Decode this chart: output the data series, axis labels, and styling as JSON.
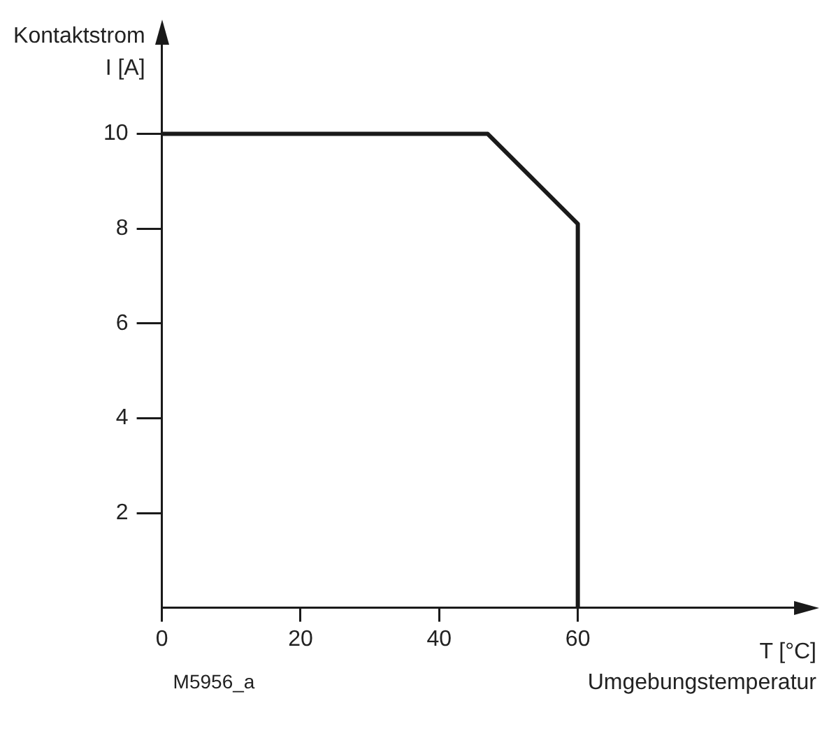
{
  "chart_data": {
    "type": "line",
    "ylabel": "Kontaktstrom\nI [A]",
    "xlabel": "T [°C]\nUmgebungstemperatur",
    "annotations": [
      "M5956_a"
    ],
    "series": [
      {
        "color": "#1a1a1a",
        "x": [
          0,
          47,
          60,
          60
        ],
        "values": [
          10,
          10,
          8.1,
          0
        ]
      }
    ],
    "xlim": [
      0,
      92
    ],
    "xticks": [
      0,
      20,
      40,
      60
    ],
    "ylim": [
      0,
      12
    ],
    "yticks": [
      2,
      4,
      6,
      8,
      10
    ],
    "grid": false,
    "legend": false,
    "marker": "none",
    "line_style": "solid"
  }
}
